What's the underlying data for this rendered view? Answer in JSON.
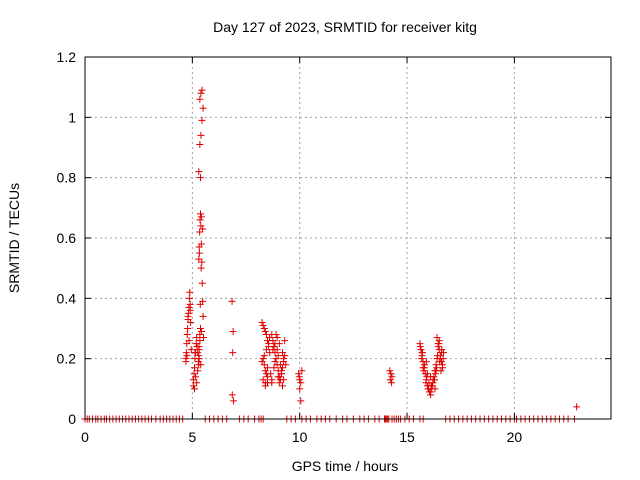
{
  "chart_data": {
    "type": "scatter",
    "title": "Day 127 of 2023, SRMTID for receiver kitg",
    "xlabel": "GPS time / hours",
    "ylabel": "SRMTID / TECUs",
    "xlim": [
      0,
      24.5
    ],
    "ylim": [
      0,
      1.2
    ],
    "xticks": [
      0,
      5,
      10,
      15,
      20
    ],
    "yticks": [
      0,
      0.2,
      0.4,
      0.6,
      0.8,
      1,
      1.2
    ],
    "grid": true,
    "legend": "none",
    "marker": "+",
    "series": [
      {
        "name": "SRMTID",
        "color": "#e00000",
        "x": [
          0.0,
          0.1,
          0.2,
          0.35,
          0.5,
          0.6,
          0.75,
          0.9,
          1.0,
          1.15,
          1.3,
          1.45,
          1.6,
          1.75,
          1.9,
          2.05,
          2.2,
          2.35,
          2.5,
          2.65,
          2.8,
          2.95,
          3.1,
          3.3,
          3.5,
          3.65,
          3.8,
          3.95,
          4.1,
          4.25,
          4.4,
          4.55,
          5.6,
          5.8,
          6.0,
          6.2,
          6.4,
          6.6,
          7.2,
          7.4,
          7.6,
          7.9,
          8.1,
          8.2,
          8.3,
          9.4,
          9.6,
          9.8,
          10.1,
          10.3,
          10.5,
          10.8,
          11.0,
          11.2,
          11.4,
          11.7,
          12.0,
          12.2,
          12.5,
          12.8,
          13.0,
          13.2,
          13.5,
          13.7,
          13.95,
          14.0,
          14.05,
          14.1,
          14.15,
          14.3,
          14.4,
          14.5,
          14.6,
          14.7,
          14.9,
          15.1,
          15.3,
          15.6,
          15.75,
          16.8,
          17.0,
          17.2,
          17.4,
          17.6,
          17.8,
          18.0,
          18.2,
          18.4,
          18.6,
          18.8,
          19.0,
          19.2,
          19.4,
          19.6,
          19.8,
          20.0,
          20.1,
          20.3,
          20.5,
          20.7,
          20.9,
          21.1,
          21.3,
          21.5,
          21.7,
          21.9,
          22.1,
          22.3,
          22.5,
          22.8,
          4.7,
          4.72,
          4.74,
          4.76,
          4.78,
          4.8,
          4.82,
          4.84,
          4.86,
          4.88,
          4.9,
          4.92,
          4.75,
          4.85,
          4.95,
          4.7,
          4.8,
          4.9,
          5.05,
          5.08,
          5.1,
          5.12,
          5.15,
          5.18,
          5.2,
          5.22,
          5.25,
          5.28,
          5.3,
          5.32,
          5.35,
          5.38,
          5.1,
          5.2,
          5.3,
          5.15,
          5.25,
          5.35,
          5.05,
          5.12,
          5.22,
          5.32,
          5.3,
          5.32,
          5.34,
          5.36,
          5.38,
          5.4,
          5.42,
          5.44,
          5.46,
          5.48,
          5.5,
          5.52,
          5.3,
          5.35,
          5.4,
          5.45,
          5.5,
          5.35,
          5.4,
          5.45,
          5.38,
          5.42,
          5.48,
          5.33,
          5.37,
          5.43,
          5.31,
          5.39,
          5.41,
          6.85,
          6.9,
          6.88,
          6.86,
          6.92,
          8.25,
          8.3,
          8.35,
          8.4,
          8.45,
          8.5,
          8.55,
          8.6,
          8.3,
          8.35,
          8.4,
          8.45,
          8.5,
          8.3,
          8.4,
          8.5,
          8.25,
          8.35,
          8.45,
          8.55,
          8.6,
          8.65,
          8.7,
          8.4,
          8.5,
          8.7,
          8.75,
          8.8,
          8.85,
          8.9,
          8.95,
          9.0,
          9.05,
          9.1,
          9.15,
          9.2,
          9.25,
          9.3,
          8.75,
          8.85,
          8.95,
          9.05,
          9.15,
          9.25,
          8.8,
          8.9,
          9.0,
          9.1,
          9.2,
          9.3,
          8.7,
          8.8,
          9.0,
          9.2,
          8.85,
          8.95,
          9.05,
          9.15,
          9.25,
          9.35,
          9.95,
          10.0,
          10.05,
          10.1,
          10.0,
          10.05,
          9.98,
          14.2,
          14.25,
          14.3,
          14.22,
          14.28,
          15.6,
          15.65,
          15.7,
          15.75,
          15.8,
          15.85,
          15.9,
          15.95,
          16.0,
          16.05,
          16.1,
          16.15,
          16.2,
          16.25,
          16.3,
          16.35,
          16.4,
          15.62,
          15.72,
          15.82,
          15.92,
          16.02,
          16.12,
          16.22,
          16.32,
          15.68,
          15.78,
          15.88,
          15.98,
          16.08,
          16.18,
          16.28,
          16.38,
          15.7,
          15.9,
          16.1,
          16.3,
          15.75,
          15.95,
          16.15,
          16.35,
          16.4,
          16.45,
          16.5,
          16.55,
          16.6,
          16.65,
          16.7,
          16.45,
          16.55,
          16.65,
          16.5,
          16.6,
          16.42,
          16.52,
          16.62,
          16.48,
          16.58,
          16.68,
          22.9
        ],
        "y": [
          0.0,
          0.0,
          0.0,
          0.0,
          0.0,
          0.0,
          0.0,
          0.0,
          0.0,
          0.0,
          0.0,
          0.0,
          0.0,
          0.0,
          0.0,
          0.0,
          0.0,
          0.0,
          0.0,
          0.0,
          0.0,
          0.0,
          0.0,
          0.0,
          0.0,
          0.0,
          0.0,
          0.0,
          0.0,
          0.0,
          0.0,
          0.0,
          0.0,
          0.0,
          0.0,
          0.0,
          0.0,
          0.0,
          0.0,
          0.0,
          0.0,
          0.0,
          0.0,
          0.0,
          0.0,
          0.0,
          0.0,
          0.0,
          0.0,
          0.0,
          0.0,
          0.0,
          0.0,
          0.0,
          0.0,
          0.0,
          0.0,
          0.0,
          0.0,
          0.0,
          0.0,
          0.0,
          0.0,
          0.0,
          0.0,
          0.0,
          0.0,
          0.0,
          0.0,
          0.0,
          0.0,
          0.0,
          0.0,
          0.0,
          0.0,
          0.0,
          0.0,
          0.0,
          0.0,
          0.0,
          0.0,
          0.0,
          0.0,
          0.0,
          0.0,
          0.0,
          0.0,
          0.0,
          0.0,
          0.0,
          0.0,
          0.0,
          0.0,
          0.0,
          0.0,
          0.0,
          0.0,
          0.0,
          0.0,
          0.0,
          0.0,
          0.0,
          0.0,
          0.0,
          0.0,
          0.0,
          0.0,
          0.0,
          0.0,
          0.0,
          0.2,
          0.22,
          0.25,
          0.28,
          0.3,
          0.33,
          0.35,
          0.37,
          0.4,
          0.42,
          0.38,
          0.32,
          0.21,
          0.26,
          0.23,
          0.19,
          0.34,
          0.36,
          0.13,
          0.15,
          0.17,
          0.2,
          0.22,
          0.25,
          0.27,
          0.24,
          0.22,
          0.19,
          0.21,
          0.23,
          0.28,
          0.3,
          0.1,
          0.12,
          0.18,
          0.14,
          0.16,
          0.26,
          0.11,
          0.22,
          0.24,
          0.2,
          0.53,
          0.57,
          0.62,
          0.66,
          0.68,
          0.64,
          0.58,
          0.52,
          0.45,
          0.39,
          0.34,
          0.27,
          0.82,
          0.91,
          0.94,
          0.99,
          1.03,
          1.06,
          1.08,
          1.09,
          0.8,
          0.67,
          0.63,
          0.55,
          0.38,
          0.29,
          0.24,
          0.18,
          0.5,
          0.39,
          0.29,
          0.22,
          0.08,
          0.06,
          0.32,
          0.31,
          0.3,
          0.29,
          0.28,
          0.26,
          0.24,
          0.22,
          0.2,
          0.18,
          0.16,
          0.15,
          0.14,
          0.13,
          0.12,
          0.17,
          0.19,
          0.21,
          0.23,
          0.25,
          0.27,
          0.15,
          0.13,
          0.11,
          0.12,
          0.28,
          0.26,
          0.24,
          0.22,
          0.2,
          0.18,
          0.16,
          0.14,
          0.13,
          0.15,
          0.17,
          0.19,
          0.21,
          0.23,
          0.25,
          0.27,
          0.12,
          0.16,
          0.2,
          0.24,
          0.28,
          0.14,
          0.18,
          0.22,
          0.26,
          0.12,
          0.17,
          0.21,
          0.11,
          0.19,
          0.23,
          0.25,
          0.15,
          0.13,
          0.18,
          0.15,
          0.13,
          0.12,
          0.16,
          0.1,
          0.06,
          0.14,
          0.16,
          0.15,
          0.14,
          0.13,
          0.12,
          0.25,
          0.23,
          0.21,
          0.19,
          0.17,
          0.15,
          0.13,
          0.11,
          0.1,
          0.09,
          0.08,
          0.1,
          0.12,
          0.14,
          0.16,
          0.18,
          0.2,
          0.24,
          0.22,
          0.18,
          0.14,
          0.12,
          0.11,
          0.13,
          0.15,
          0.2,
          0.16,
          0.12,
          0.1,
          0.09,
          0.11,
          0.13,
          0.17,
          0.22,
          0.19,
          0.14,
          0.1,
          0.17,
          0.15,
          0.11,
          0.16,
          0.27,
          0.25,
          0.23,
          0.21,
          0.19,
          0.17,
          0.22,
          0.24,
          0.2,
          0.18,
          0.26,
          0.22,
          0.21,
          0.19,
          0.23,
          0.25,
          0.16,
          0.2,
          0.04
        ]
      }
    ]
  }
}
